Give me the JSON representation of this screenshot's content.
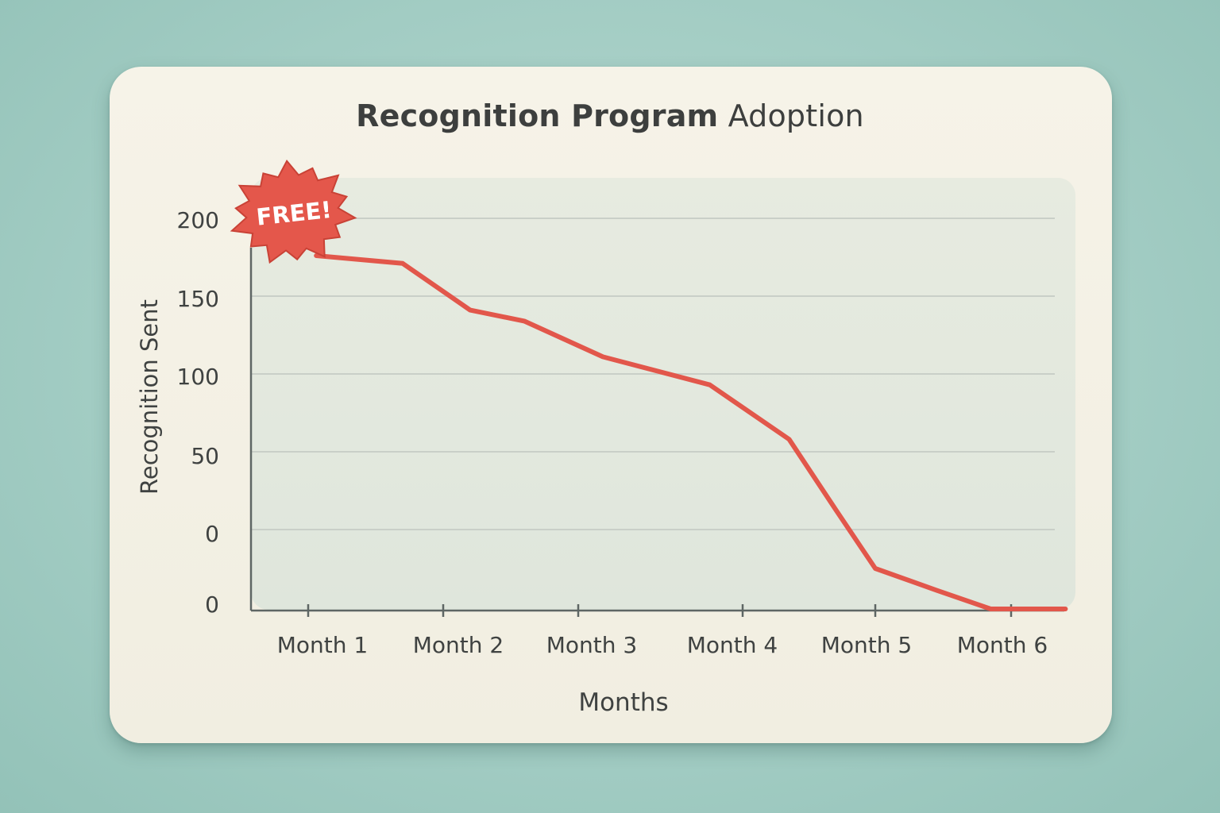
{
  "title": {
    "bold": "Recognition Program",
    "light": "Adoption"
  },
  "badge": {
    "label": "FREE!",
    "color": "#e4574b"
  },
  "chart_data": {
    "type": "line",
    "title": "Recognition Program Adoption",
    "xlabel": "Months",
    "ylabel": "Recognition Sent",
    "y_tick_labels": [
      "200",
      "150",
      "100",
      "50",
      "0",
      "0"
    ],
    "x_tick_labels": [
      "Month 1",
      "Month 2",
      "Month 3",
      "Month 4",
      "Month 5",
      "Month 6"
    ],
    "grid": true,
    "series": [
      {
        "color": "#e2574b",
        "points": [
          {
            "x": 0.06,
            "y": 176
          },
          {
            "x": 0.7,
            "y": 171
          },
          {
            "x": 1.2,
            "y": 141
          },
          {
            "x": 1.6,
            "y": 134
          },
          {
            "x": 2.15,
            "y": 111
          },
          {
            "x": 2.8,
            "y": 93
          },
          {
            "x": 3.35,
            "y": 58
          },
          {
            "x": 3.7,
            "y": 13
          },
          {
            "x": 4.0,
            "y": -25
          },
          {
            "x": 4.45,
            "y": -39
          },
          {
            "x": 4.85,
            "y": -51
          },
          {
            "x": 5.4,
            "y": -51
          }
        ]
      }
    ]
  }
}
